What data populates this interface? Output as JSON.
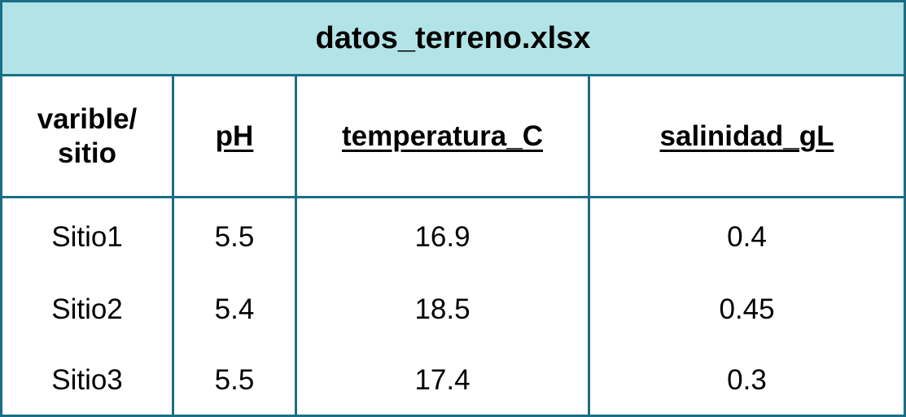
{
  "title": "datos_terreno.xlsx",
  "header": {
    "corner": "varible/\nsitio",
    "corner_line1": "varible/",
    "corner_line2": "sitio",
    "columns": [
      "pH",
      "temperatura_C",
      "salinidad_gL"
    ]
  },
  "rows": [
    {
      "site": "Sitio1",
      "ph": "5.5",
      "temperatura_C": "16.9",
      "salinidad_gL": "0.4"
    },
    {
      "site": "Sitio2",
      "ph": "5.4",
      "temperatura_C": "18.5",
      "salinidad_gL": "0.45"
    },
    {
      "site": "Sitio3",
      "ph": "5.5",
      "temperatura_C": "17.4",
      "salinidad_gL": "0.3"
    }
  ],
  "colors": {
    "title_background": "#b2e3e6",
    "border": "#1a6e88"
  }
}
